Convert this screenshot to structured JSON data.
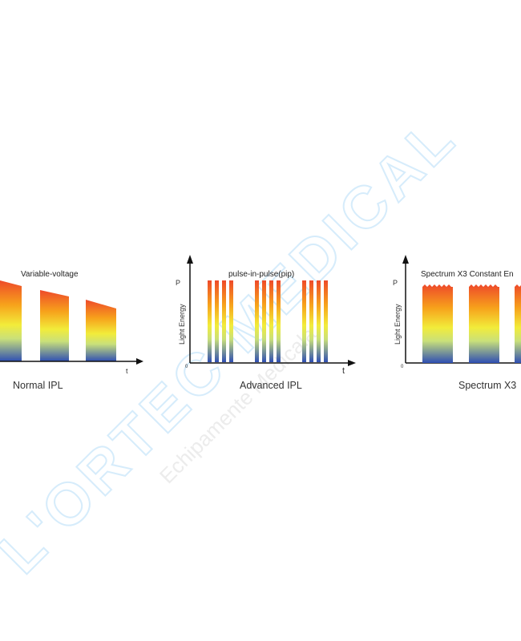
{
  "watermark": {
    "brand": "L'ORTEC MEDICAL",
    "tagline": "Echipamente Medicala"
  },
  "panels": [
    {
      "title": "Variable-voltage",
      "caption": "Normal IPL",
      "x_axis_label": "t",
      "y_axis_label": "",
      "p_label": "",
      "origin_label": ""
    },
    {
      "title": "pulse-in-pulse(pip)",
      "caption": "Advanced IPL",
      "x_axis_label": "t",
      "y_axis_label": "Light Energy",
      "p_label": "P",
      "origin_label": "0"
    },
    {
      "title": "Spectrum X3 Constant En",
      "caption": "Spectrum X3",
      "x_axis_label": "",
      "y_axis_label": "Light Energy",
      "p_label": "P",
      "origin_label": "0"
    }
  ],
  "colors": {
    "gradient_top": "#ee4a2a",
    "gradient_mid_orange": "#f7a21b",
    "gradient_mid_yellow": "#f2ec3a",
    "gradient_low_green": "#c9e07a",
    "gradient_bottom": "#2f4fb3",
    "axis": "#111111",
    "watermark": "#d6ecfb"
  }
}
